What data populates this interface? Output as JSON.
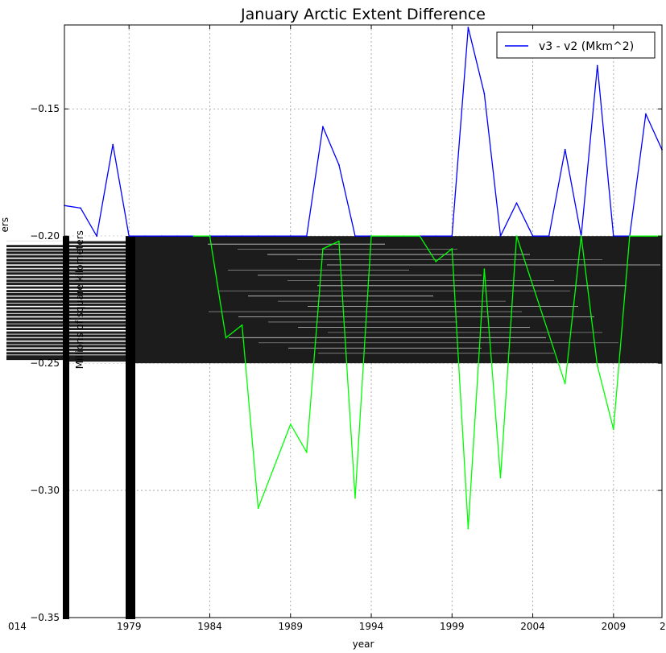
{
  "chart_data": {
    "type": "line",
    "title": "January Arctic Extent Difference",
    "xlabel": "year",
    "ylabel": "Millions of square kilometers",
    "ylabel_fragment": "ers",
    "xlim": [
      1975,
      2012
    ],
    "ylim": [
      -0.35,
      -0.117
    ],
    "xticks": [
      1979,
      1984,
      1989,
      1994,
      1999,
      2004,
      2009
    ],
    "xtick_labels": [
      "1979",
      "1984",
      "1989",
      "1994",
      "1999",
      "2004",
      "2009"
    ],
    "xtick_fragments": [
      "014",
      "2"
    ],
    "yticks": [
      -0.35,
      -0.3,
      -0.25,
      -0.2,
      -0.15
    ],
    "ytick_labels": [
      "−0.35",
      "−0.30",
      "−0.25",
      "−0.20",
      "−0.15"
    ],
    "grid": true,
    "legend": {
      "position": "top-right",
      "entries": [
        "v3 - v2 (Mkm^2)"
      ]
    },
    "series": [
      {
        "name": "v3 - v2 (Mkm^2)",
        "color": "#0000ff",
        "x": [
          1975,
          1976,
          1977,
          1978,
          1979,
          1980,
          1981,
          1982,
          1983,
          1984,
          1985,
          1986,
          1987,
          1988,
          1989,
          1990,
          1991,
          1992,
          1993,
          1994,
          1995,
          1996,
          1997,
          1998,
          1999,
          2000,
          2001,
          2002,
          2003,
          2004,
          2005,
          2006,
          2007,
          2008,
          2009,
          2010,
          2011,
          2012
        ],
        "y": [
          -0.188,
          -0.189,
          -0.2,
          -0.164,
          -0.2,
          -0.2,
          -0.2,
          -0.2,
          -0.2,
          -0.2,
          -0.2,
          -0.2,
          -0.2,
          -0.2,
          -0.2,
          -0.2,
          -0.157,
          -0.172,
          -0.2,
          -0.2,
          -0.2,
          -0.2,
          -0.2,
          -0.2,
          -0.2,
          -0.118,
          -0.144,
          -0.2,
          -0.187,
          -0.2,
          -0.2,
          -0.166,
          -0.2,
          -0.133,
          -0.2,
          -0.2,
          -0.152,
          -0.166
        ]
      },
      {
        "name": "",
        "color": "#00ff00",
        "x": [
          1983,
          1984,
          1985,
          1986,
          1987,
          1989,
          1990,
          1991,
          1992,
          1993,
          1994,
          1997,
          1998,
          1999,
          2000,
          2001,
          2002,
          2003,
          2006,
          2007,
          2008,
          2009,
          2010,
          2011,
          2012
        ],
        "y": [
          -0.2,
          -0.2,
          -0.24,
          -0.235,
          -0.307,
          -0.274,
          -0.285,
          -0.205,
          -0.202,
          -0.303,
          -0.2,
          -0.2,
          -0.21,
          -0.205,
          -0.315,
          -0.213,
          -0.295,
          -0.2,
          -0.258,
          -0.2,
          -0.251,
          -0.276,
          -0.2,
          -0.2,
          -0.2
        ]
      }
    ]
  }
}
